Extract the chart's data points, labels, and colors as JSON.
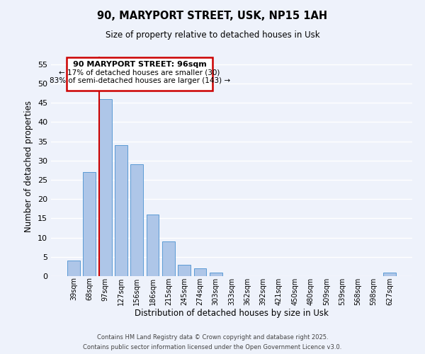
{
  "title": "90, MARYPORT STREET, USK, NP15 1AH",
  "subtitle": "Size of property relative to detached houses in Usk",
  "xlabel": "Distribution of detached houses by size in Usk",
  "ylabel": "Number of detached properties",
  "bar_color": "#aec6e8",
  "bar_edge_color": "#5b9bd5",
  "background_color": "#eef2fb",
  "grid_color": "#ffffff",
  "categories": [
    "39sqm",
    "68sqm",
    "97sqm",
    "127sqm",
    "156sqm",
    "186sqm",
    "215sqm",
    "245sqm",
    "274sqm",
    "303sqm",
    "333sqm",
    "362sqm",
    "392sqm",
    "421sqm",
    "450sqm",
    "480sqm",
    "509sqm",
    "539sqm",
    "568sqm",
    "598sqm",
    "627sqm"
  ],
  "values": [
    4,
    27,
    46,
    34,
    29,
    16,
    9,
    3,
    2,
    1,
    0,
    0,
    0,
    0,
    0,
    0,
    0,
    0,
    0,
    0,
    1
  ],
  "ylim": [
    0,
    57
  ],
  "yticks": [
    0,
    5,
    10,
    15,
    20,
    25,
    30,
    35,
    40,
    45,
    50,
    55
  ],
  "redline_index": 2,
  "annotation_box": {
    "title": "90 MARYPORT STREET: 96sqm",
    "line1": "← 17% of detached houses are smaller (30)",
    "line2": "83% of semi-detached houses are larger (143) →",
    "box_color": "#ffffff",
    "border_color": "#cc0000",
    "text_color": "#000000"
  },
  "footer_line1": "Contains HM Land Registry data © Crown copyright and database right 2025.",
  "footer_line2": "Contains public sector information licensed under the Open Government Licence v3.0."
}
